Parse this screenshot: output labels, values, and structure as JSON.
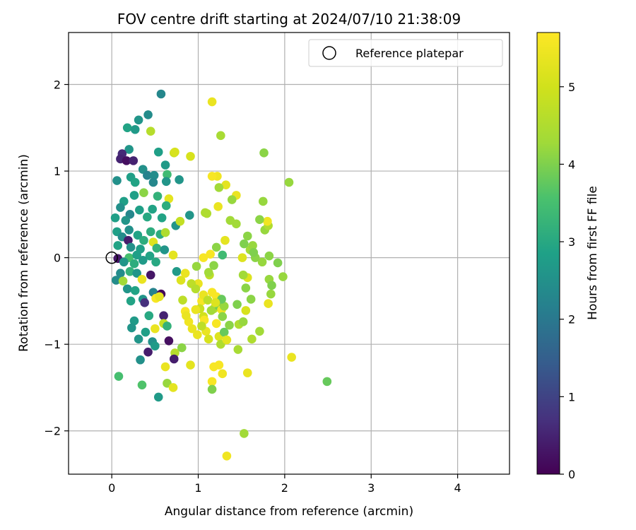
{
  "chart_data": {
    "type": "scatter",
    "title": "FOV centre drift starting at 2024/07/10 21:38:09",
    "xlabel": "Angular distance from reference (arcmin)",
    "ylabel": "Rotation from reference (arcmin)",
    "xlim": [
      -0.5,
      4.6
    ],
    "ylim": [
      -2.5,
      2.6
    ],
    "x_ticks": [
      0,
      1,
      2,
      3,
      4
    ],
    "x_tick_labels": [
      "0",
      "1",
      "2",
      "3",
      "4"
    ],
    "y_ticks": [
      -2,
      -1,
      0,
      1,
      2
    ],
    "y_tick_labels": [
      "−2",
      "−1",
      "0",
      "1",
      "2"
    ],
    "grid": true,
    "legend": {
      "placement": "top-right",
      "entries": [
        "Reference platepar"
      ]
    },
    "reference_point": {
      "x": 0,
      "y": 0,
      "label": "Reference platepar",
      "marker": "open-circle"
    },
    "colorbar": {
      "label": "Hours from first FF file",
      "colormap": "viridis",
      "range": [
        0,
        5.7
      ],
      "ticks": [
        0,
        1,
        2,
        3,
        4,
        5
      ],
      "tick_labels": [
        "0",
        "1",
        "2",
        "3",
        "4",
        "5"
      ]
    },
    "series": [
      {
        "points": [
          [
            0.57,
            1.89,
            2.3
          ],
          [
            0.42,
            1.65,
            2.4
          ],
          [
            0.31,
            1.59,
            2.6
          ],
          [
            0.18,
            1.5,
            2.9
          ],
          [
            0.27,
            1.48,
            2.7
          ],
          [
            0.45,
            1.46,
            4.6
          ],
          [
            0.2,
            1.25,
            2.6
          ],
          [
            0.12,
            1.2,
            0.6
          ],
          [
            0.1,
            1.14,
            0.5
          ],
          [
            0.17,
            1.12,
            0.2
          ],
          [
            0.25,
            1.12,
            0.5
          ],
          [
            0.54,
            1.22,
            2.8
          ],
          [
            0.72,
            1.21,
            4.9
          ],
          [
            0.91,
            1.17,
            5.1
          ],
          [
            0.62,
            1.07,
            2.7
          ],
          [
            0.36,
            1.02,
            2.5
          ],
          [
            0.41,
            0.95,
            2.2
          ],
          [
            0.49,
            0.95,
            2.4
          ],
          [
            0.64,
            0.96,
            3.4
          ],
          [
            0.22,
            0.93,
            2.8
          ],
          [
            0.06,
            0.89,
            2.5
          ],
          [
            0.27,
            0.87,
            2.9
          ],
          [
            0.48,
            0.87,
            2.3
          ],
          [
            0.63,
            0.88,
            2.6
          ],
          [
            0.78,
            0.9,
            2.6
          ],
          [
            0.37,
            0.75,
            4.1
          ],
          [
            0.26,
            0.72,
            2.8
          ],
          [
            0.14,
            0.65,
            2.8
          ],
          [
            0.53,
            0.71,
            3.2
          ],
          [
            0.66,
            0.68,
            5.3
          ],
          [
            0.1,
            0.58,
            2.5
          ],
          [
            0.32,
            0.55,
            2.8
          ],
          [
            0.47,
            0.56,
            2.9
          ],
          [
            0.63,
            0.6,
            3.1
          ],
          [
            0.21,
            0.5,
            2.3
          ],
          [
            0.04,
            0.46,
            2.8
          ],
          [
            0.16,
            0.43,
            2.6
          ],
          [
            0.41,
            0.47,
            3.0
          ],
          [
            0.58,
            0.46,
            2.9
          ],
          [
            0.9,
            0.49,
            2.6
          ],
          [
            0.74,
            0.37,
            2.6
          ],
          [
            0.06,
            0.3,
            2.8
          ],
          [
            0.2,
            0.32,
            2.5
          ],
          [
            0.3,
            0.26,
            2.9
          ],
          [
            0.45,
            0.3,
            3.1
          ],
          [
            0.56,
            0.27,
            3.1
          ],
          [
            0.62,
            0.29,
            4.5
          ],
          [
            0.12,
            0.24,
            2.4
          ],
          [
            0.19,
            0.2,
            0.4
          ],
          [
            0.37,
            0.2,
            3.1
          ],
          [
            0.48,
            0.18,
            5.2
          ],
          [
            0.07,
            0.14,
            2.9
          ],
          [
            0.22,
            0.12,
            2.5
          ],
          [
            0.33,
            0.1,
            2.8
          ],
          [
            0.52,
            0.11,
            3.2
          ],
          [
            0.61,
            0.09,
            2.6
          ],
          [
            0.2,
            0.0,
            3.5
          ],
          [
            0.29,
            0.03,
            2.8
          ],
          [
            0.44,
            0.02,
            2.9
          ],
          [
            0.07,
            -0.01,
            0.3
          ],
          [
            0.14,
            -0.05,
            2.6
          ],
          [
            0.26,
            -0.07,
            3.1
          ],
          [
            0.36,
            -0.03,
            2.7
          ],
          [
            0.51,
            -0.05,
            3.0
          ],
          [
            0.1,
            -0.18,
            2.4
          ],
          [
            0.21,
            -0.16,
            3.2
          ],
          [
            0.29,
            -0.18,
            2.6
          ],
          [
            0.45,
            -0.2,
            0.3
          ],
          [
            0.05,
            -0.26,
            2.4
          ],
          [
            0.13,
            -0.27,
            4.3
          ],
          [
            0.35,
            -0.25,
            5.4
          ],
          [
            0.18,
            -0.36,
            2.6
          ],
          [
            0.27,
            -0.38,
            2.9
          ],
          [
            0.48,
            -0.4,
            2.2
          ],
          [
            0.57,
            -0.42,
            0.1
          ],
          [
            0.36,
            -0.48,
            2.6
          ],
          [
            0.22,
            -0.5,
            2.9
          ],
          [
            0.38,
            -0.52,
            0.7
          ],
          [
            0.51,
            -0.47,
            5.6
          ],
          [
            0.6,
            -0.67,
            0.5
          ],
          [
            0.43,
            -0.67,
            3.0
          ],
          [
            0.6,
            -0.76,
            4.8
          ],
          [
            0.26,
            -0.73,
            2.7
          ],
          [
            0.23,
            -0.81,
            2.6
          ],
          [
            0.39,
            -0.86,
            2.8
          ],
          [
            0.5,
            -0.82,
            5.4
          ],
          [
            0.64,
            -0.79,
            3.2
          ],
          [
            0.31,
            -0.94,
            2.6
          ],
          [
            0.47,
            -0.97,
            2.5
          ],
          [
            0.66,
            -0.96,
            0.2
          ],
          [
            0.5,
            -1.02,
            2.7
          ],
          [
            0.42,
            -1.09,
            0.4
          ],
          [
            0.73,
            -1.1,
            4.6
          ],
          [
            0.81,
            -1.04,
            4.1
          ],
          [
            0.33,
            -1.18,
            2.5
          ],
          [
            0.72,
            -1.17,
            0.4
          ],
          [
            0.62,
            -1.26,
            5.4
          ],
          [
            0.08,
            -1.37,
            3.5
          ],
          [
            0.35,
            -1.47,
            3.6
          ],
          [
            0.64,
            -1.45,
            4.2
          ],
          [
            0.54,
            -1.61,
            2.7
          ],
          [
            0.71,
            -1.5,
            5.3
          ],
          [
            0.71,
            0.03,
            5.3
          ],
          [
            0.75,
            -0.16,
            2.7
          ],
          [
            0.8,
            -0.26,
            5.2
          ],
          [
            0.82,
            -0.49,
            4.7
          ],
          [
            0.85,
            -0.62,
            5.6
          ],
          [
            0.89,
            -0.74,
            5.5
          ],
          [
            0.93,
            -0.82,
            5.4
          ],
          [
            0.98,
            -0.1,
            4.2
          ],
          [
            1.0,
            -0.3,
            5.4
          ],
          [
            1.04,
            -0.5,
            5.6
          ],
          [
            1.06,
            -0.68,
            5.0
          ],
          [
            1.09,
            -0.85,
            5.4
          ],
          [
            1.12,
            -0.94,
            5.1
          ],
          [
            1.13,
            -0.2,
            4.7
          ],
          [
            1.16,
            -0.4,
            5.6
          ],
          [
            1.18,
            -0.59,
            4.6
          ],
          [
            1.21,
            -0.76,
            5.6
          ],
          [
            1.24,
            -0.91,
            5.2
          ],
          [
            1.26,
            -1.0,
            4.5
          ],
          [
            1.3,
            -0.86,
            3.8
          ],
          [
            1.33,
            -0.95,
            5.3
          ],
          [
            1.18,
            -1.26,
            5.6
          ],
          [
            1.24,
            -1.24,
            5.6
          ],
          [
            1.28,
            -1.34,
            5.5
          ],
          [
            1.16,
            -1.43,
            5.6
          ],
          [
            1.16,
            -1.52,
            4.0
          ],
          [
            1.33,
            -2.29,
            5.5
          ],
          [
            1.53,
            -2.03,
            4.3
          ],
          [
            1.57,
            -1.33,
            5.4
          ],
          [
            1.46,
            -1.06,
            4.4
          ],
          [
            1.47,
            -0.77,
            4.5
          ],
          [
            1.61,
            -0.48,
            4.1
          ],
          [
            1.62,
            -0.94,
            4.5
          ],
          [
            1.71,
            -0.85,
            4.3
          ],
          [
            1.81,
            -0.53,
            5.4
          ],
          [
            1.84,
            -0.42,
            4.2
          ],
          [
            1.74,
            -0.05,
            4.2
          ],
          [
            1.6,
            0.09,
            4.3
          ],
          [
            1.66,
            0.0,
            4.1
          ],
          [
            1.53,
            0.16,
            4.0
          ],
          [
            1.44,
            0.39,
            4.3
          ],
          [
            1.57,
            0.25,
            4.1
          ],
          [
            1.44,
            0.72,
            5.4
          ],
          [
            1.39,
            0.67,
            4.2
          ],
          [
            1.32,
            0.84,
            5.3
          ],
          [
            1.24,
            0.81,
            4.3
          ],
          [
            1.22,
            0.94,
            5.5
          ],
          [
            1.16,
            0.94,
            5.6
          ],
          [
            1.23,
            0.59,
            5.4
          ],
          [
            1.1,
            0.51,
            4.5
          ],
          [
            1.08,
            0.52,
            4.5
          ],
          [
            1.31,
            0.2,
            5.3
          ],
          [
            1.28,
            0.03,
            3.4
          ],
          [
            1.14,
            0.04,
            5.6
          ],
          [
            1.21,
            0.12,
            4.1
          ],
          [
            1.06,
            0.0,
            5.6
          ],
          [
            1.12,
            -0.17,
            4.3
          ],
          [
            1.18,
            -0.09,
            4.1
          ],
          [
            1.06,
            -0.43,
            5.4
          ],
          [
            1.11,
            -0.49,
            4.7
          ],
          [
            1.02,
            -0.59,
            4.9
          ],
          [
            0.97,
            -0.6,
            5.4
          ],
          [
            1.07,
            -0.72,
            5.6
          ],
          [
            1.15,
            -0.61,
            4.3
          ],
          [
            1.21,
            -0.45,
            5.6
          ],
          [
            1.24,
            -0.56,
            3.9
          ],
          [
            1.27,
            -0.6,
            5.5
          ],
          [
            1.3,
            -0.56,
            4.2
          ],
          [
            1.27,
            -0.48,
            3.8
          ],
          [
            1.2,
            -0.52,
            5.2
          ],
          [
            1.28,
            -0.68,
            4.1
          ],
          [
            1.04,
            -0.79,
            4.7
          ],
          [
            0.99,
            -0.89,
            5.4
          ],
          [
            0.86,
            -0.67,
            5.4
          ],
          [
            0.92,
            -0.3,
            4.7
          ],
          [
            0.97,
            -0.36,
            4.6
          ],
          [
            0.85,
            -0.18,
            5.4
          ],
          [
            0.79,
            0.42,
            4.8
          ],
          [
            1.76,
            1.21,
            4.1
          ],
          [
            2.05,
            0.87,
            4.2
          ],
          [
            1.75,
            0.65,
            4.2
          ],
          [
            1.77,
            0.32,
            4.2
          ],
          [
            1.81,
            0.37,
            4.5
          ],
          [
            1.8,
            0.42,
            5.5
          ],
          [
            1.71,
            0.44,
            4.1
          ],
          [
            1.63,
            0.14,
            4.2
          ],
          [
            1.82,
            0.02,
            4.1
          ],
          [
            1.92,
            -0.06,
            4.0
          ],
          [
            1.98,
            -0.22,
            4.2
          ],
          [
            1.82,
            -0.25,
            4.2
          ],
          [
            1.85,
            -0.32,
            4.0
          ],
          [
            1.55,
            -0.35,
            4.1
          ],
          [
            1.57,
            -0.23,
            5.2
          ],
          [
            1.52,
            -0.2,
            4.3
          ],
          [
            1.55,
            -0.61,
            5.1
          ],
          [
            1.45,
            -0.54,
            4.0
          ],
          [
            1.52,
            -0.74,
            4.2
          ],
          [
            1.36,
            -0.78,
            4.1
          ],
          [
            1.51,
            0.0,
            5.2
          ],
          [
            1.64,
            0.06,
            4.0
          ],
          [
            1.37,
            0.43,
            4.3
          ],
          [
            2.08,
            -1.15,
            5.4
          ],
          [
            2.49,
            -1.43,
            3.8
          ],
          [
            1.16,
            1.8,
            5.4
          ],
          [
            1.26,
            1.41,
            4.4
          ],
          [
            0.73,
            1.22,
            5.1
          ],
          [
            0.55,
            -0.45,
            5.3
          ],
          [
            0.91,
            -1.24,
            5.3
          ]
        ]
      }
    ]
  }
}
